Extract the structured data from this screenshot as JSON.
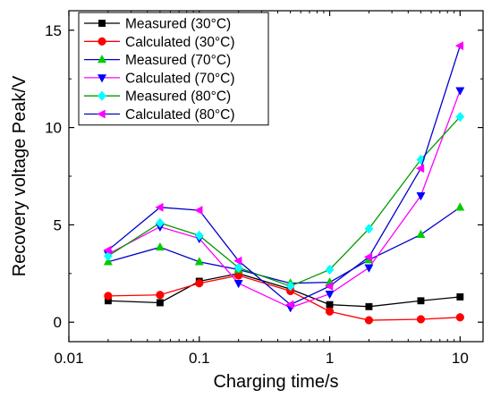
{
  "chart_data": {
    "type": "line",
    "xlabel": "Charging time/s",
    "ylabel": "Recovery voltage Peak/V",
    "xscale": "log",
    "xlim": [
      0.01,
      15
    ],
    "ylim": [
      -1,
      16
    ],
    "x_ticks": [
      0.01,
      0.1,
      1,
      10
    ],
    "x_tick_labels": [
      "0.01",
      "0.1",
      "1",
      "10"
    ],
    "y_ticks": [
      0,
      5,
      10,
      15
    ],
    "y_tick_labels": [
      "0",
      "5",
      "10",
      "15"
    ],
    "grid": false,
    "legend_position": "top-left",
    "x": [
      0.02,
      0.05,
      0.1,
      0.2,
      0.5,
      1,
      2,
      5,
      10
    ],
    "series": [
      {
        "name": "Measured (30°C)",
        "color": "#000000",
        "marker": "square",
        "values": [
          1.1,
          1.0,
          2.1,
          2.5,
          1.7,
          0.9,
          0.8,
          1.1,
          1.3
        ]
      },
      {
        "name": "Calculated (30°C)",
        "color": "#ff0000",
        "marker": "circle",
        "values": [
          1.35,
          1.4,
          2.0,
          2.4,
          1.6,
          0.55,
          0.1,
          0.15,
          0.25
        ]
      },
      {
        "name": "Measured (70°C)",
        "color": "#00cc00",
        "line_color": "#0000cc",
        "marker": "triangle-up",
        "values": [
          3.1,
          3.85,
          3.1,
          2.7,
          2.0,
          2.05,
          3.2,
          4.5,
          5.9
        ]
      },
      {
        "name": "Calculated (70°C)",
        "color": "#0000ff",
        "line_color": "#ff00ff",
        "marker": "triangle-down",
        "values": [
          3.5,
          4.9,
          4.3,
          2.0,
          0.75,
          1.45,
          2.8,
          6.5,
          11.9
        ]
      },
      {
        "name": "Measured (80°C)",
        "color": "#00ffff",
        "line_color": "#009900",
        "marker": "diamond",
        "values": [
          3.4,
          5.1,
          4.45,
          2.8,
          1.85,
          2.7,
          4.8,
          8.35,
          10.55
        ]
      },
      {
        "name": "Calculated (80°C)",
        "color": "#ff00ff",
        "line_color": "#0000cc",
        "marker": "triangle-left",
        "values": [
          3.7,
          5.9,
          5.75,
          3.15,
          0.9,
          1.85,
          3.35,
          7.9,
          14.2
        ]
      }
    ]
  }
}
